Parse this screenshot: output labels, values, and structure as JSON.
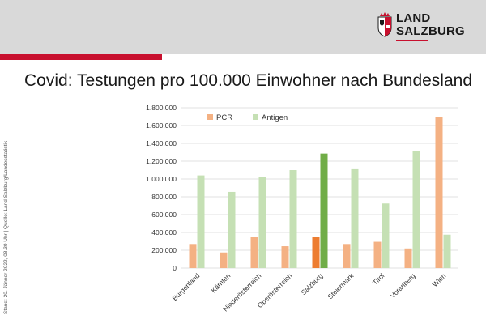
{
  "header": {
    "brand_line1": "LAND",
    "brand_line2": "SALZBURG",
    "colors": {
      "band": "#d9d9d9",
      "accent": "#c8102e"
    }
  },
  "title": "Covid: Testungen pro 100.000 Einwohner nach Bundesland",
  "source_note": "Stand: 20. Jänner 2022, 08.30 Uhr | Quelle: Land Salzburg/Landesstatistik",
  "chart_data": {
    "type": "bar",
    "categories": [
      "Burgenland",
      "Kärnten",
      "Niederösterreich",
      "Oberösterreich",
      "Salzburg",
      "Steiermark",
      "Tirol",
      "Vorarlberg",
      "Wien"
    ],
    "series": [
      {
        "name": "PCR",
        "color": "#f4b183",
        "highlight_color": "#ed7d31",
        "values": [
          270000,
          175000,
          350000,
          245000,
          350000,
          270000,
          295000,
          220000,
          1700000
        ]
      },
      {
        "name": "Antigen",
        "color": "#c5e0b4",
        "highlight_color": "#70ad47",
        "values": [
          1040000,
          855000,
          1020000,
          1100000,
          1285000,
          1110000,
          725000,
          1310000,
          375000
        ]
      }
    ],
    "highlight_category": "Salzburg",
    "ylim": [
      0,
      1800000
    ],
    "yticks": [
      0,
      200000,
      400000,
      600000,
      800000,
      1000000,
      1200000,
      1400000,
      1600000,
      1800000
    ],
    "ytick_labels": [
      "0",
      "200.000",
      "400.000",
      "600.000",
      "800.000",
      "1.000.000",
      "1.200.000",
      "1.400.000",
      "1.600.000",
      "1.800.000"
    ],
    "legend_position": "top-left"
  }
}
